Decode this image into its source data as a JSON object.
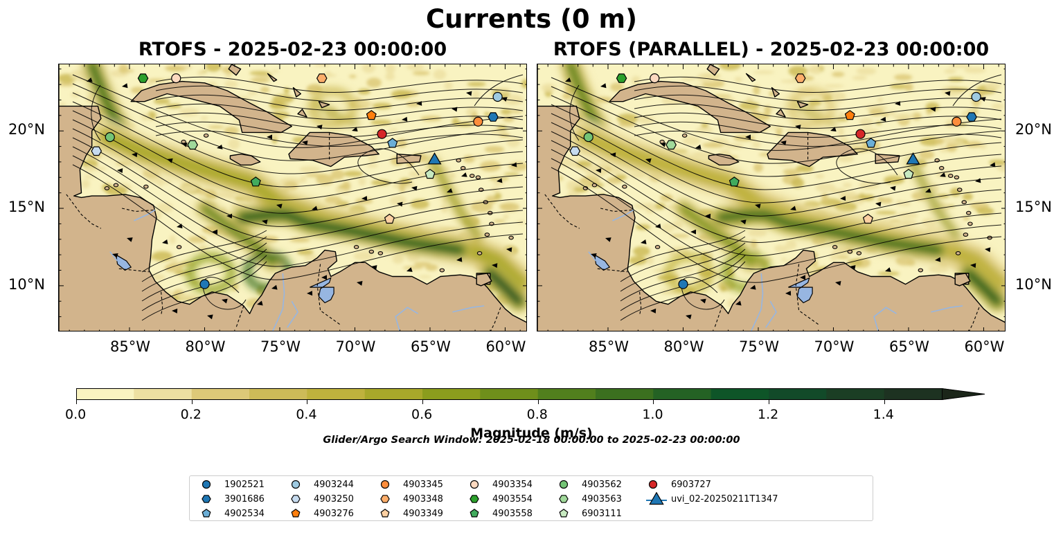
{
  "figure": {
    "title": "Currents (0 m)",
    "panels": [
      {
        "title": "RTOFS - 2025-02-23 00:00:00"
      },
      {
        "title": "RTOFS (PARALLEL) - 2025-02-23 00:00:00"
      }
    ],
    "lon_ticks": [
      "85°W",
      "80°W",
      "75°W",
      "70°W",
      "65°W",
      "60°W"
    ],
    "lat_ticks": [
      "20°N",
      "15°N",
      "10°N"
    ],
    "extent": {
      "lon": [
        -89.7,
        -58.5
      ],
      "lat": [
        7.0,
        24.3
      ]
    },
    "colorbar": {
      "label": "Magnitude (m/s)",
      "ticks": [
        "0.0",
        "0.2",
        "0.4",
        "0.6",
        "0.8",
        "1.0",
        "1.2",
        "1.4"
      ],
      "range": [
        0.0,
        1.5
      ],
      "extend": "max",
      "colors": [
        "#f9f3c1",
        "#ede0a2",
        "#ddc978",
        "#cdbb58",
        "#bfb23d",
        "#a8a82a",
        "#8b9d1d",
        "#6f8f1b",
        "#517f1d",
        "#3b701f",
        "#246224",
        "#0e5528",
        "#124a29",
        "#1b3e24",
        "#1d3221",
        "#1b2619"
      ]
    },
    "search_window": "Glider/Argo Search Window: 2025-02-18 00:00:00 to 2025-02-23 00:00:00",
    "colors": {
      "land": "#d2b48c",
      "lakes": "#97b6e1",
      "rivers": "#97b6e1",
      "ocean_low": "#f9f3c1"
    }
  },
  "legend": [
    {
      "id": "1902521",
      "marker": "circle",
      "color": "#1f77b4"
    },
    {
      "id": "3901686",
      "marker": "hexagon",
      "color": "#1f77b4"
    },
    {
      "id": "4902534",
      "marker": "pentagon",
      "color": "#6baed6"
    },
    {
      "id": "4903244",
      "marker": "circle",
      "color": "#9ecae1"
    },
    {
      "id": "4903250",
      "marker": "hexagon",
      "color": "#c6dbef"
    },
    {
      "id": "4903276",
      "marker": "pentagon",
      "color": "#ff7f0e"
    },
    {
      "id": "4903345",
      "marker": "circle",
      "color": "#fd8d3c"
    },
    {
      "id": "4903348",
      "marker": "hexagon",
      "color": "#fdae6b"
    },
    {
      "id": "4903349",
      "marker": "pentagon",
      "color": "#fdd0a2"
    },
    {
      "id": "4903354",
      "marker": "circle",
      "color": "#fdd9c0"
    },
    {
      "id": "4903554",
      "marker": "hexagon",
      "color": "#2ca02c"
    },
    {
      "id": "4903558",
      "marker": "pentagon",
      "color": "#41ab5d"
    },
    {
      "id": "4903562",
      "marker": "circle",
      "color": "#74c476"
    },
    {
      "id": "4903563",
      "marker": "hexagon",
      "color": "#a1d99b"
    },
    {
      "id": "6903111",
      "marker": "pentagon",
      "color": "#c7e9c0"
    },
    {
      "id": "6903727",
      "marker": "circle",
      "color": "#d62728"
    },
    {
      "id": "uvi_02-20250211T1347",
      "marker": "triangle-line",
      "color": "#1f77b4"
    }
  ],
  "platforms": [
    {
      "id": "1902521",
      "lon": -80.0,
      "lat": 10.1
    },
    {
      "id": "3901686",
      "lon": -60.8,
      "lat": 20.9
    },
    {
      "id": "4902534",
      "lon": -67.5,
      "lat": 19.2
    },
    {
      "id": "4903244",
      "lon": -60.5,
      "lat": 22.2
    },
    {
      "id": "4903250",
      "lon": -87.2,
      "lat": 18.7
    },
    {
      "id": "4903276",
      "lon": -68.9,
      "lat": 21.0
    },
    {
      "id": "4903345",
      "lon": -61.8,
      "lat": 20.6
    },
    {
      "id": "4903348",
      "lon": -72.2,
      "lat": 23.4
    },
    {
      "id": "4903349",
      "lon": -67.7,
      "lat": 14.3
    },
    {
      "id": "4903354",
      "lon": -81.9,
      "lat": 23.4
    },
    {
      "id": "4903554",
      "lon": -84.1,
      "lat": 23.4
    },
    {
      "id": "4903558",
      "lon": -76.6,
      "lat": 16.7
    },
    {
      "id": "4903562",
      "lon": -86.3,
      "lat": 19.6
    },
    {
      "id": "4903563",
      "lon": -80.8,
      "lat": 19.1
    },
    {
      "id": "6903111",
      "lon": -65.0,
      "lat": 17.2
    },
    {
      "id": "6903727",
      "lon": -68.2,
      "lat": 19.8
    },
    {
      "id": "uvi_02-20250211T1347",
      "lon": -64.7,
      "lat": 18.1
    }
  ]
}
